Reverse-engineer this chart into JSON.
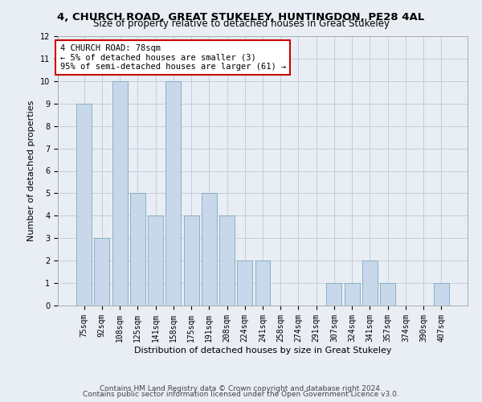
{
  "title1": "4, CHURCH ROAD, GREAT STUKELEY, HUNTINGDON, PE28 4AL",
  "title2": "Size of property relative to detached houses in Great Stukeley",
  "xlabel": "Distribution of detached houses by size in Great Stukeley",
  "ylabel": "Number of detached properties",
  "categories": [
    "75sqm",
    "92sqm",
    "108sqm",
    "125sqm",
    "141sqm",
    "158sqm",
    "175sqm",
    "191sqm",
    "208sqm",
    "224sqm",
    "241sqm",
    "258sqm",
    "274sqm",
    "291sqm",
    "307sqm",
    "324sqm",
    "341sqm",
    "357sqm",
    "374sqm",
    "390sqm",
    "407sqm"
  ],
  "values": [
    9,
    3,
    10,
    5,
    4,
    10,
    4,
    5,
    4,
    2,
    2,
    0,
    0,
    0,
    1,
    1,
    2,
    1,
    0,
    0,
    1
  ],
  "bar_color": "#c8d8ea",
  "bar_edge_color": "#7aaabb",
  "annotation_box_text": "4 CHURCH ROAD: 78sqm\n← 5% of detached houses are smaller (3)\n95% of semi-detached houses are larger (61) →",
  "annotation_box_color": "#ffffff",
  "annotation_box_edge_color": "#cc0000",
  "ylim": [
    0,
    12
  ],
  "yticks": [
    0,
    1,
    2,
    3,
    4,
    5,
    6,
    7,
    8,
    9,
    10,
    11,
    12
  ],
  "footer1": "Contains HM Land Registry data © Crown copyright and database right 2024.",
  "footer2": "Contains public sector information licensed under the Open Government Licence v3.0.",
  "bg_color": "#e8eef4",
  "plot_bg_color": "#e8eef4",
  "grid_color": "#c0c8d8",
  "title1_fontsize": 9.5,
  "title2_fontsize": 8.5,
  "xlabel_fontsize": 8,
  "ylabel_fontsize": 8,
  "tick_fontsize": 7,
  "annotation_fontsize": 7.5,
  "footer_fontsize": 6.5
}
